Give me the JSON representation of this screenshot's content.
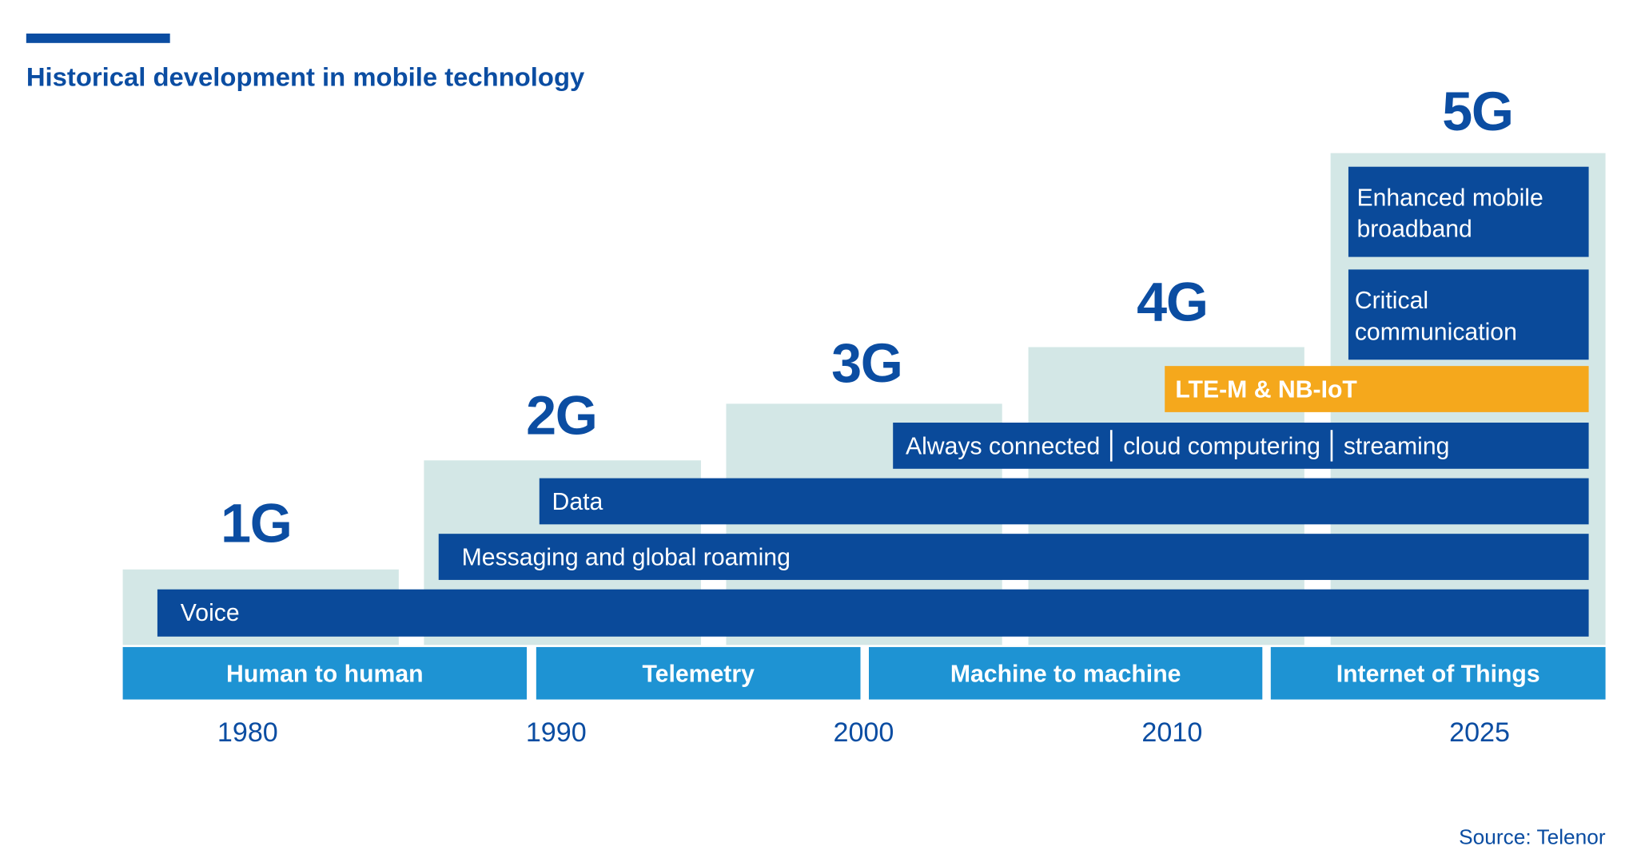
{
  "title": "Historical development in mobile technology",
  "colors": {
    "dark_blue": "#0A4A9A",
    "light_step": "#D3E7E6",
    "category_blue": "#1E93D3",
    "orange": "#F5A81C"
  },
  "generations": [
    "1G",
    "2G",
    "3G",
    "4G",
    "5G"
  ],
  "bars": {
    "voice": "Voice",
    "messaging": "Messaging and global roaming",
    "data": "Data",
    "always": [
      "Always connected",
      "cloud computering",
      "streaming"
    ],
    "lte": "LTE-M & NB-IoT",
    "embb": "Enhanced mobile broadband",
    "critical": "Critical communication"
  },
  "categories": [
    "Human to human",
    "Telemetry",
    "Machine to machine",
    "Internet of Things"
  ],
  "years": [
    "1980",
    "1990",
    "2000",
    "2010",
    "2025"
  ],
  "source": "Source: Telenor"
}
